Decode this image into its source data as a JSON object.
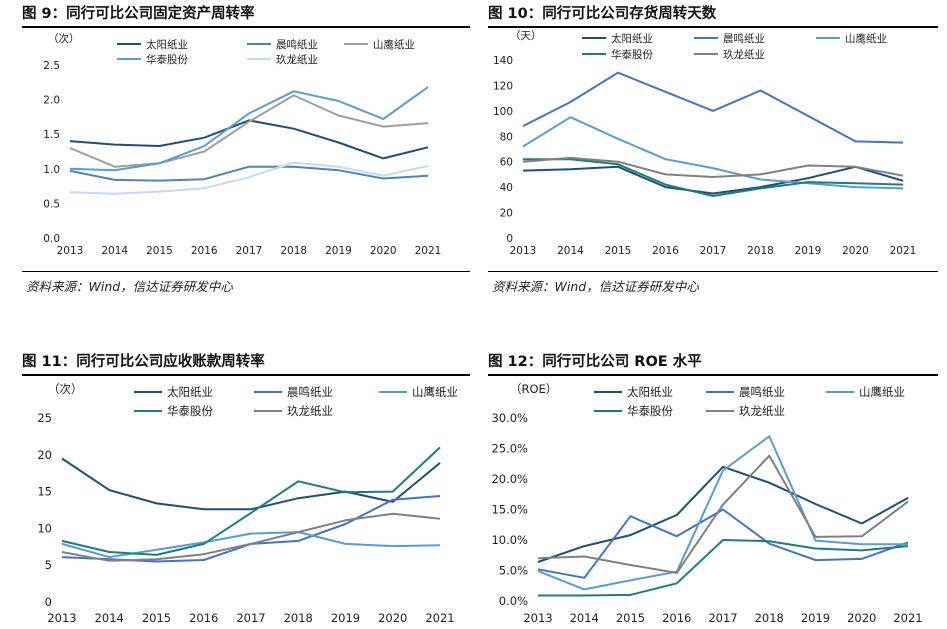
{
  "colors": {
    "taiyang": "#1f4e79",
    "chenming": "#4472c4",
    "shanying": "#5b9bd5",
    "huatai": "#1a7f7a",
    "jiulong": "#808080",
    "jiulong_light": "#c5d9f1"
  },
  "chart_data": [
    {
      "type": "line",
      "title": "图 9：同行可比公司固定资产周转率",
      "source": "资料来源：Wind，信达证券研发中心",
      "unit": "（次）",
      "categories": [
        "2013",
        "2014",
        "2015",
        "2016",
        "2017",
        "2018",
        "2019",
        "2020",
        "2021"
      ],
      "ylim": [
        0,
        2.5
      ],
      "yticks": [
        0,
        0.5,
        1.0,
        1.5,
        2.0,
        2.5
      ],
      "ytick_labels": [
        "0.0",
        "0.5",
        "1.0",
        "1.5",
        "2.0",
        "2.5"
      ],
      "legend_rows": [
        [
          0,
          1,
          2
        ],
        [
          3,
          4
        ]
      ],
      "series": [
        {
          "name": "太阳纸业",
          "color": "#1f4e79",
          "values": [
            1.4,
            1.35,
            1.33,
            1.45,
            1.7,
            1.58,
            1.38,
            1.15,
            1.31
          ]
        },
        {
          "name": "晨鸣纸业",
          "color": "#4f81bd",
          "values": [
            0.97,
            0.84,
            0.83,
            0.85,
            1.03,
            1.03,
            0.98,
            0.86,
            0.9
          ]
        },
        {
          "name": "山鹰纸业",
          "color": "#9e9e9e",
          "values": [
            1.3,
            1.03,
            1.08,
            1.25,
            1.68,
            2.06,
            1.77,
            1.61,
            1.66
          ]
        },
        {
          "name": "华泰股份",
          "color": "#5b9bd5",
          "values": [
            1.0,
            0.98,
            1.08,
            1.33,
            1.8,
            2.12,
            1.98,
            1.72,
            2.18
          ]
        },
        {
          "name": "玖龙纸业",
          "color": "#c5d9f1",
          "values": [
            0.66,
            0.64,
            0.67,
            0.72,
            0.88,
            1.09,
            1.03,
            0.9,
            1.04
          ]
        }
      ]
    },
    {
      "type": "line",
      "title": "图 10：同行可比公司存货周转天数",
      "source": "资料来源：Wind，信达证券研发中心",
      "unit": "（天）",
      "categories": [
        "2013",
        "2014",
        "2015",
        "2016",
        "2017",
        "2018",
        "2019",
        "2020",
        "2021"
      ],
      "ylim": [
        0,
        140
      ],
      "yticks": [
        0,
        20,
        40,
        60,
        80,
        100,
        120,
        140
      ],
      "ytick_labels": [
        "0",
        "20",
        "40",
        "60",
        "80",
        "100",
        "120",
        "140"
      ],
      "legend_rows": [
        [
          0,
          1,
          2
        ],
        [
          3,
          4
        ]
      ],
      "series": [
        {
          "name": "太阳纸业",
          "color": "#1f4e79",
          "values": [
            53,
            54,
            56,
            40,
            35,
            40,
            47,
            56,
            45
          ]
        },
        {
          "name": "晨鸣纸业",
          "color": "#4472c4",
          "values": [
            88,
            107,
            130,
            115,
            100,
            116,
            96,
            76,
            75
          ]
        },
        {
          "name": "山鹰纸业",
          "color": "#5b9bd5",
          "values": [
            72,
            95,
            78,
            62,
            55,
            46,
            43,
            40,
            39
          ]
        },
        {
          "name": "华泰股份",
          "color": "#1a7f7a",
          "values": [
            62,
            62,
            58,
            42,
            33,
            39,
            44,
            43,
            42
          ]
        },
        {
          "name": "玖龙纸业",
          "color": "#808080",
          "values": [
            60,
            63,
            60,
            50,
            48,
            50,
            57,
            56,
            49
          ]
        }
      ]
    },
    {
      "type": "line",
      "title": "图 11：同行可比公司应收账款周转率",
      "source": "",
      "unit": "（次）",
      "categories": [
        "2013",
        "2014",
        "2015",
        "2016",
        "2017",
        "2018",
        "2019",
        "2020",
        "2021"
      ],
      "ylim": [
        0,
        25
      ],
      "yticks": [
        0,
        5,
        10,
        15,
        20,
        25
      ],
      "ytick_labels": [
        "0",
        "5",
        "10",
        "15",
        "20",
        "25"
      ],
      "legend_rows": [
        [
          0,
          1,
          2
        ],
        [
          3,
          4
        ]
      ],
      "series": [
        {
          "name": "太阳纸业",
          "color": "#1f4e79",
          "values": [
            19.5,
            15.2,
            13.4,
            12.6,
            12.6,
            14.1,
            15.0,
            13.6,
            18.9
          ]
        },
        {
          "name": "晨鸣纸业",
          "color": "#4472c4",
          "values": [
            6.1,
            5.8,
            5.5,
            5.7,
            7.9,
            8.3,
            10.6,
            13.9,
            14.4
          ]
        },
        {
          "name": "山鹰纸业",
          "color": "#5b9bd5",
          "values": [
            7.9,
            6.1,
            7.1,
            8.1,
            9.3,
            9.5,
            7.9,
            7.6,
            7.7
          ]
        },
        {
          "name": "华泰股份",
          "color": "#1a7f7a",
          "values": [
            8.3,
            6.8,
            6.4,
            7.9,
            12.1,
            16.4,
            14.9,
            15.0,
            21.0
          ]
        },
        {
          "name": "玖龙纸业",
          "color": "#808080",
          "values": [
            6.8,
            5.6,
            5.8,
            6.5,
            7.9,
            9.5,
            11.1,
            12.0,
            11.3
          ]
        }
      ]
    },
    {
      "type": "line",
      "title": "图 12：同行可比公司 ROE 水平",
      "source": "",
      "unit": "（ROE）",
      "categories": [
        "2013",
        "2014",
        "2015",
        "2016",
        "2017",
        "2018",
        "2019",
        "2020",
        "2021"
      ],
      "ylim": [
        0,
        30
      ],
      "yticks": [
        0,
        5,
        10,
        15,
        20,
        25,
        30
      ],
      "ytick_labels": [
        "0.0%",
        "5.0%",
        "10.0%",
        "15.0%",
        "20.0%",
        "25.0%",
        "30.0%"
      ],
      "legend_rows": [
        [
          0,
          1,
          2
        ],
        [
          3,
          4
        ]
      ],
      "series": [
        {
          "name": "太阳纸业",
          "color": "#1f4e79",
          "values": [
            6.4,
            9.0,
            10.8,
            14.1,
            22.0,
            19.4,
            15.9,
            12.7,
            16.9
          ]
        },
        {
          "name": "晨鸣纸业",
          "color": "#4472c4",
          "values": [
            5.2,
            3.8,
            13.9,
            10.6,
            15.0,
            9.4,
            6.7,
            6.9,
            9.6
          ]
        },
        {
          "name": "山鹰纸业",
          "color": "#5b9bd5",
          "values": [
            4.9,
            1.9,
            3.4,
            4.8,
            21.4,
            27.0,
            9.9,
            9.3,
            9.3
          ]
        },
        {
          "name": "华泰股份",
          "color": "#1a7f7a",
          "values": [
            0.9,
            0.9,
            1.0,
            2.9,
            10.0,
            9.8,
            8.6,
            8.3,
            9.0
          ]
        },
        {
          "name": "玖龙纸业",
          "color": "#808080",
          "values": [
            7.0,
            7.3,
            5.9,
            4.6,
            15.8,
            23.8,
            10.5,
            10.6,
            16.3
          ]
        }
      ]
    }
  ]
}
